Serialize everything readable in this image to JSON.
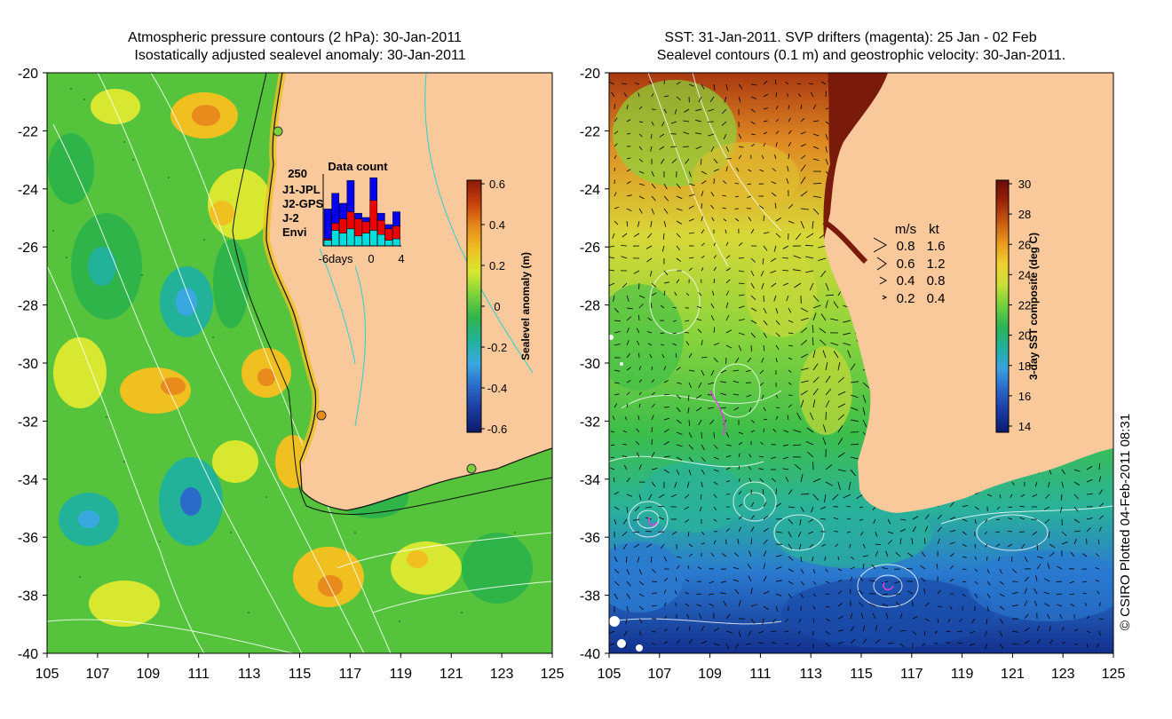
{
  "left_panel": {
    "title_line1": "Atmospheric pressure contours (2 hPa): 30-Jan-2011",
    "title_line2": "Isostatically adjusted sealevel anomaly: 30-Jan-2011",
    "colorbar": {
      "label": "Sealevel anomaly (m)",
      "ticks": [
        "0.6",
        "0.4",
        "0.2",
        "0",
        "-0.2",
        "-0.4",
        "-0.6"
      ],
      "colors": [
        "#8a1a08",
        "#c8400a",
        "#e58a1c",
        "#f0c020",
        "#d8e830",
        "#7ad23a",
        "#2fb44a",
        "#22b29a",
        "#3aa8e0",
        "#2a6ac8",
        "#1a3a9c",
        "#0c1a6a"
      ]
    },
    "inset": {
      "title": "Data count",
      "max_label": "250",
      "x_ticks": [
        "-6days",
        "0",
        "4"
      ],
      "legend": [
        {
          "label": "J1-JPL",
          "color": "#0000ee"
        },
        {
          "label": "J2-GPS",
          "color": "#ee00ee"
        },
        {
          "label": "J-2",
          "color": "#ee0000"
        },
        {
          "label": "Envi",
          "color": "#00dddd"
        }
      ],
      "bars": [
        {
          "Envi": 20,
          "J-2": 25,
          "J1-JPL": 130
        },
        {
          "Envi": 55,
          "J-2": 80,
          "J1-JPL": 185
        },
        {
          "Envi": 45,
          "J-2": 95,
          "J1-JPL": 150
        },
        {
          "Envi": 60,
          "J-2": 120,
          "J1-JPL": 230
        },
        {
          "Envi": 35,
          "J-2": 95,
          "J1-JPL": 115
        },
        {
          "Envi": 45,
          "J-2": 85,
          "J1-JPL": 100
        },
        {
          "Envi": 55,
          "J-2": 160,
          "J1-JPL": 240
        },
        {
          "Envi": 40,
          "J-2": 90,
          "J1-JPL": 115
        },
        {
          "Envi": 20,
          "J-2": 60,
          "J1-JPL": 75
        },
        {
          "Envi": 25,
          "J-2": 70,
          "J1-JPL": 120
        }
      ]
    },
    "x_ticks": [
      "105",
      "107",
      "109",
      "111",
      "113",
      "115",
      "117",
      "119",
      "121",
      "123",
      "125"
    ],
    "y_ticks": [
      "-20",
      "-22",
      "-24",
      "-26",
      "-28",
      "-30",
      "-32",
      "-34",
      "-36",
      "-38",
      "-40"
    ]
  },
  "right_panel": {
    "title_line1": "SST: 31-Jan-2011. SVP drifters (magenta): 25 Jan - 02 Feb",
    "title_line2": "Sealevel contours (0.1 m) and geostrophic velocity: 30-Jan-2011.",
    "colorbar": {
      "label": "3-day SST composite (deg C)",
      "ticks": [
        "30",
        "28",
        "26",
        "24",
        "22",
        "20",
        "18",
        "16",
        "14"
      ],
      "colors": [
        "#6a0a0a",
        "#9a2208",
        "#c85a10",
        "#e89a20",
        "#f0d030",
        "#c8e038",
        "#6ed03c",
        "#2cb454",
        "#22b0a0",
        "#3aa0e0",
        "#2a64c8",
        "#1a3aa0",
        "#0c1a70"
      ]
    },
    "velocity_legend": {
      "header_ms": "m/s",
      "header_kt": "kt",
      "rows": [
        {
          "ms": "0.8",
          "kt": "1.6"
        },
        {
          "ms": "0.6",
          "kt": "1.2"
        },
        {
          "ms": "0.4",
          "kt": "0.8"
        },
        {
          "ms": "0.2",
          "kt": "0.4"
        }
      ]
    },
    "x_ticks": [
      "105",
      "107",
      "109",
      "111",
      "113",
      "115",
      "117",
      "119",
      "121",
      "123",
      "125"
    ],
    "y_ticks": [
      "-20",
      "-22",
      "-24",
      "-26",
      "-28",
      "-30",
      "-32",
      "-34",
      "-36",
      "-38",
      "-40"
    ]
  },
  "credit": "© CSIRO Plotted 04-Feb-2011 08:31",
  "colors": {
    "land": "#f9c99b",
    "ocean_left": "#55c43c",
    "ocean_right": "#3fbe4a",
    "drifter": "#e040e0"
  }
}
